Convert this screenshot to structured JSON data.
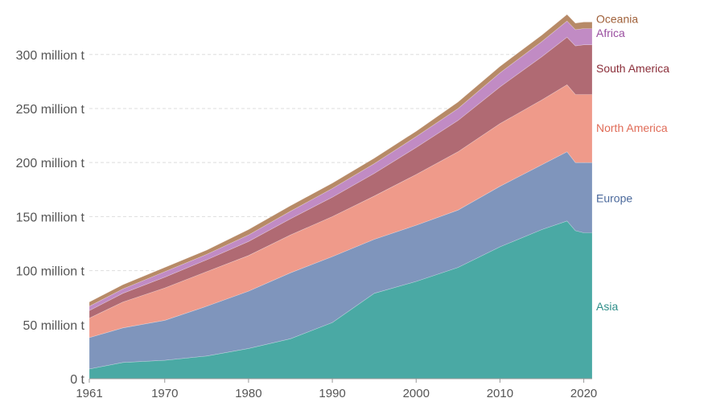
{
  "chart_data": {
    "type": "area",
    "stacked": true,
    "title": "",
    "xlabel": "",
    "ylabel": "",
    "xlim": [
      1961,
      2021
    ],
    "ylim": [
      0,
      340
    ],
    "y_ticks": [
      {
        "value": 0,
        "label": "0 t"
      },
      {
        "value": 50,
        "label": "50 million t"
      },
      {
        "value": 100,
        "label": "100 million t"
      },
      {
        "value": 150,
        "label": "150 million t"
      },
      {
        "value": 200,
        "label": "200 million t"
      },
      {
        "value": 250,
        "label": "250 million t"
      },
      {
        "value": 300,
        "label": "300 million t"
      }
    ],
    "x_ticks": [
      {
        "value": 1961,
        "label": "1961"
      },
      {
        "value": 1970,
        "label": "1970"
      },
      {
        "value": 1980,
        "label": "1980"
      },
      {
        "value": 1990,
        "label": "1990"
      },
      {
        "value": 2000,
        "label": "2000"
      },
      {
        "value": 2010,
        "label": "2010"
      },
      {
        "value": 2020,
        "label": "2020"
      }
    ],
    "grid": true,
    "legend_position": "right (labels at series ends)",
    "x": [
      1961,
      1965,
      1970,
      1975,
      1980,
      1985,
      1990,
      1995,
      2000,
      2005,
      2010,
      2015,
      2018,
      2019,
      2020,
      2021
    ],
    "series": [
      {
        "name": "Asia",
        "color": "#4aa9a4",
        "label_color": "#2f8f8a",
        "label_value": 67,
        "values": [
          9,
          15,
          17,
          21,
          28,
          37,
          52,
          79,
          90,
          103,
          122,
          138,
          146,
          137,
          135,
          135
        ]
      },
      {
        "name": "Europe",
        "color": "#7f95bc",
        "label_color": "#4c6a9c",
        "label_value": 167,
        "values": [
          29,
          32,
          37,
          46,
          53,
          61,
          61,
          50,
          52,
          53,
          56,
          60,
          64,
          63,
          65,
          65
        ]
      },
      {
        "name": "North America",
        "color": "#ef9a8a",
        "label_color": "#e06c58",
        "label_value": 232,
        "values": [
          18,
          24,
          30,
          32,
          33,
          35,
          37,
          40,
          47,
          54,
          58,
          60,
          62,
          63,
          63,
          63
        ]
      },
      {
        "name": "South America",
        "color": "#b06a73",
        "label_color": "#8b2f3a",
        "label_value": 287,
        "values": [
          7,
          8,
          10,
          11,
          13,
          15,
          18,
          21,
          25,
          29,
          34,
          40,
          44,
          45,
          46,
          46
        ]
      },
      {
        "name": "Africa",
        "color": "#c18bc4",
        "label_color": "#9a4fa0",
        "label_value": 320,
        "values": [
          4,
          4,
          5,
          5,
          6,
          7,
          8,
          9,
          10,
          11,
          13,
          14,
          15,
          15,
          15,
          15
        ]
      },
      {
        "name": "Oceania",
        "color": "#b78a67",
        "label_color": "#a0613a",
        "label_value": 333,
        "values": [
          4,
          4,
          4,
          4,
          5,
          5,
          5,
          5,
          5,
          6,
          6,
          6,
          6,
          6,
          6,
          6
        ]
      }
    ]
  }
}
